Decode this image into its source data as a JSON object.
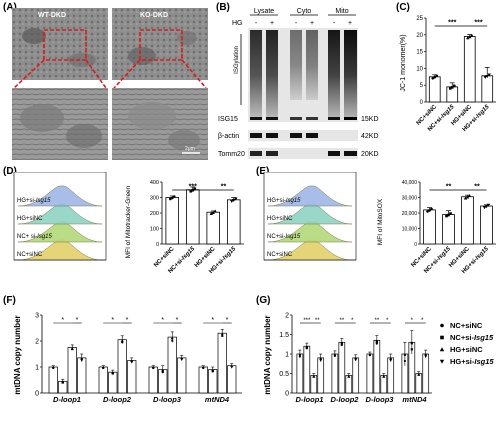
{
  "panels": {
    "A": {
      "label": "(A)",
      "top_left_label": "WT-DKD",
      "top_right_label": "KO-DKD",
      "scale_text": "2μm"
    },
    "B": {
      "label": "(B)",
      "headers": [
        "Lysate",
        "Cyto",
        "Mito"
      ],
      "hg_label": "HG",
      "hg_signs": [
        "-",
        "+",
        "-",
        "+",
        "-",
        "+"
      ],
      "isgylation_label": "ISGylation",
      "row_labels": [
        "ISG15",
        "β-actin",
        "Tomm20"
      ],
      "kd_labels": [
        "15KD",
        "42KD",
        "20KD"
      ]
    },
    "C": {
      "label": "(C)",
      "ylabel": "JC-1 monomer(%)",
      "sig": [
        "***",
        "***"
      ]
    },
    "D": {
      "label": "(D)",
      "ylabel": "MFI of Mitotracker-Green",
      "sig": [
        "***",
        "**"
      ],
      "hist_labels": [
        "NC+siNC",
        "NC+ si-Isg15",
        "HG+siNC",
        "HG+si-Isg15"
      ]
    },
    "E": {
      "label": "(E)",
      "ylabel": "MFI of MitoSOX",
      "sig": [
        "**",
        "**"
      ],
      "hist_labels": [
        "NC+siNC",
        "NC+si-Isg15",
        "HG+siNC",
        "HG+si-Isg15"
      ]
    },
    "F": {
      "label": "(F)",
      "ylabel": "mtDNA copy number"
    },
    "G": {
      "label": "(G)",
      "ylabel": "mtDNA copy number",
      "legend": [
        "NC+siNC",
        "NC+si-Isg15",
        "HG+siNC",
        "HG+si-Isg15"
      ]
    }
  },
  "chart_data": [
    {
      "panel": "C",
      "type": "bar",
      "categories": [
        "NC+siNC",
        "NC+si-Isg15",
        "HG+siNC",
        "HG+si-Isg15"
      ],
      "values": [
        7.5,
        4.5,
        19.5,
        7.8
      ],
      "errors": [
        0.6,
        1.2,
        0.6,
        2.5
      ],
      "ylabel": "JC-1 monomer(%)",
      "ylim": [
        0,
        25
      ],
      "yticks": [
        0,
        5,
        10,
        15,
        20,
        25
      ],
      "significance": [
        {
          "from": 0,
          "to": 2,
          "text": "***"
        },
        {
          "from": 2,
          "to": 3,
          "text": "***"
        }
      ]
    },
    {
      "panel": "D",
      "type": "bar",
      "categories": [
        "NC+siNC",
        "NC+si-Isg15",
        "HG+siNC",
        "HG+si-Isg15"
      ],
      "values": [
        300,
        350,
        205,
        285
      ],
      "errors": [
        10,
        18,
        8,
        15
      ],
      "ylabel": "MFI of Mitotracker-Green",
      "ylim": [
        0,
        400
      ],
      "yticks": [
        0,
        100,
        200,
        300,
        400
      ],
      "significance": [
        {
          "from": 0,
          "to": 2,
          "text": "***"
        },
        {
          "from": 2,
          "to": 3,
          "text": "**"
        }
      ]
    },
    {
      "panel": "E",
      "type": "bar",
      "categories": [
        "NC+siNC",
        "NC+si-Isg15",
        "HG+siNC",
        "HG+si-Isg15"
      ],
      "values": [
        22000,
        19000,
        30500,
        24500
      ],
      "errors": [
        1500,
        2500,
        1000,
        800
      ],
      "ylabel": "MFI of MitoSOX",
      "ylim": [
        0,
        40000
      ],
      "yticks": [
        0,
        10000,
        20000,
        30000,
        40000
      ],
      "significance": [
        {
          "from": 0,
          "to": 2,
          "text": "**"
        },
        {
          "from": 2,
          "to": 3,
          "text": "**"
        }
      ]
    },
    {
      "panel": "F",
      "type": "bar",
      "categories": [
        "D-loop1",
        "D-loop2",
        "D-loop3",
        "mtND4"
      ],
      "series": [
        {
          "name": "NC+siNC",
          "values": [
            1.0,
            1.0,
            1.0,
            1.0
          ],
          "errors": [
            0.05,
            0.05,
            0.05,
            0.05
          ]
        },
        {
          "name": "NC+si-Isg15",
          "values": [
            0.45,
            0.8,
            0.9,
            0.9
          ],
          "errors": [
            0.08,
            0.08,
            0.15,
            0.1
          ]
        },
        {
          "name": "HG+siNC",
          "values": [
            1.75,
            2.05,
            2.15,
            2.3
          ],
          "errors": [
            0.1,
            0.15,
            0.2,
            0.15
          ]
        },
        {
          "name": "HG+si-Isg15",
          "values": [
            1.35,
            1.25,
            1.35,
            1.05
          ],
          "errors": [
            0.15,
            0.1,
            0.1,
            0.08
          ]
        }
      ],
      "ylabel": "mtDNA copy number",
      "ylim": [
        0,
        3
      ],
      "yticks": [
        0,
        1,
        2,
        3
      ]
    },
    {
      "panel": "G",
      "type": "bar",
      "categories": [
        "D-loop1",
        "D-loop2",
        "D-loop3",
        "mtND4"
      ],
      "series": [
        {
          "name": "NC+siNC",
          "values": [
            1.0,
            1.0,
            1.0,
            1.0
          ],
          "errors": [
            0.1,
            0.08,
            0.05,
            0.3
          ]
        },
        {
          "name": "NC+si-Isg15",
          "values": [
            1.2,
            1.3,
            1.35,
            1.3
          ],
          "errors": [
            0.08,
            0.1,
            0.12,
            0.3
          ]
        },
        {
          "name": "HG+siNC",
          "values": [
            0.45,
            0.45,
            0.45,
            0.5
          ],
          "errors": [
            0.05,
            0.05,
            0.05,
            0.05
          ]
        },
        {
          "name": "HG+si-Isg15",
          "values": [
            0.9,
            0.9,
            0.9,
            1.0
          ],
          "errors": [
            0.1,
            0.08,
            0.1,
            0.1
          ]
        }
      ],
      "ylabel": "mtDNA copy number",
      "ylim": [
        0,
        2.0
      ],
      "yticks": [
        0.0,
        0.5,
        1.0,
        1.5,
        2.0
      ],
      "legend_position": "right"
    }
  ]
}
